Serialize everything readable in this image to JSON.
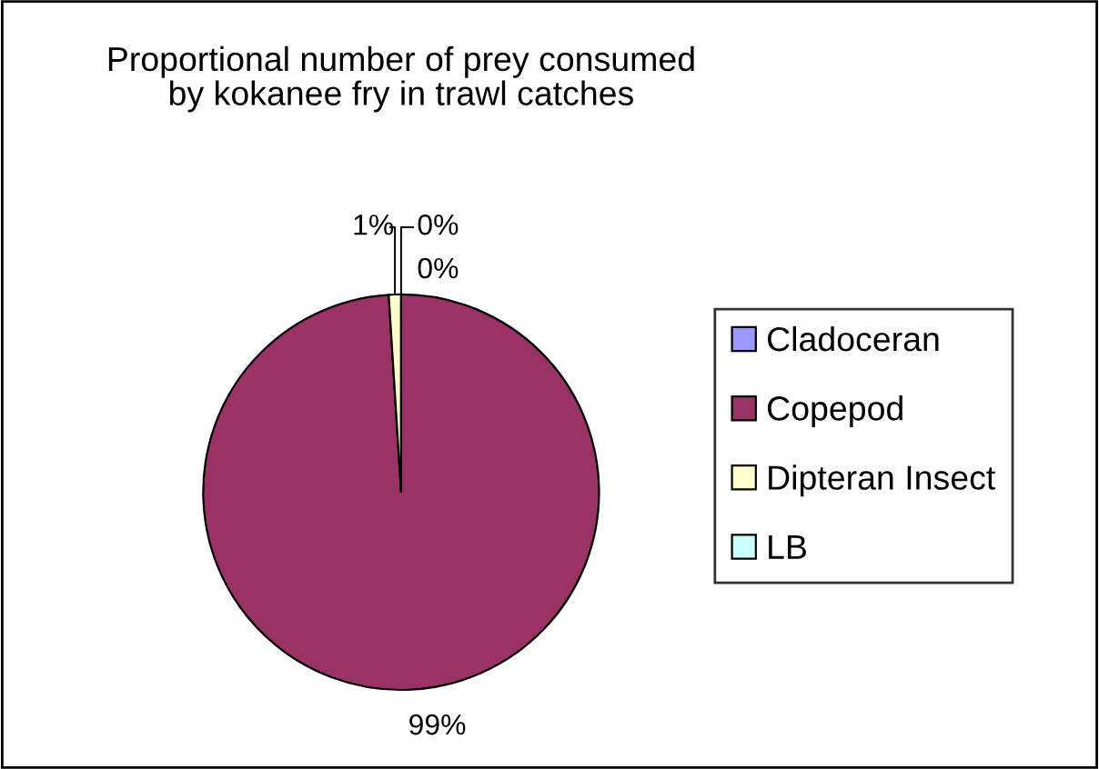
{
  "chart_data": {
    "type": "pie",
    "title": "Proportional number of prey consumed\nby kokanee fry in trawl catches",
    "categories": [
      "Cladoceran",
      "Copepod",
      "Dipteran Insect",
      "LB"
    ],
    "values": [
      0,
      99,
      1,
      0
    ],
    "colors": [
      "#9999ff",
      "#993366",
      "#ffffcc",
      "#ccffff"
    ],
    "value_labels": [
      "0%",
      "99%",
      "1%",
      "0%"
    ],
    "legend": "right"
  }
}
